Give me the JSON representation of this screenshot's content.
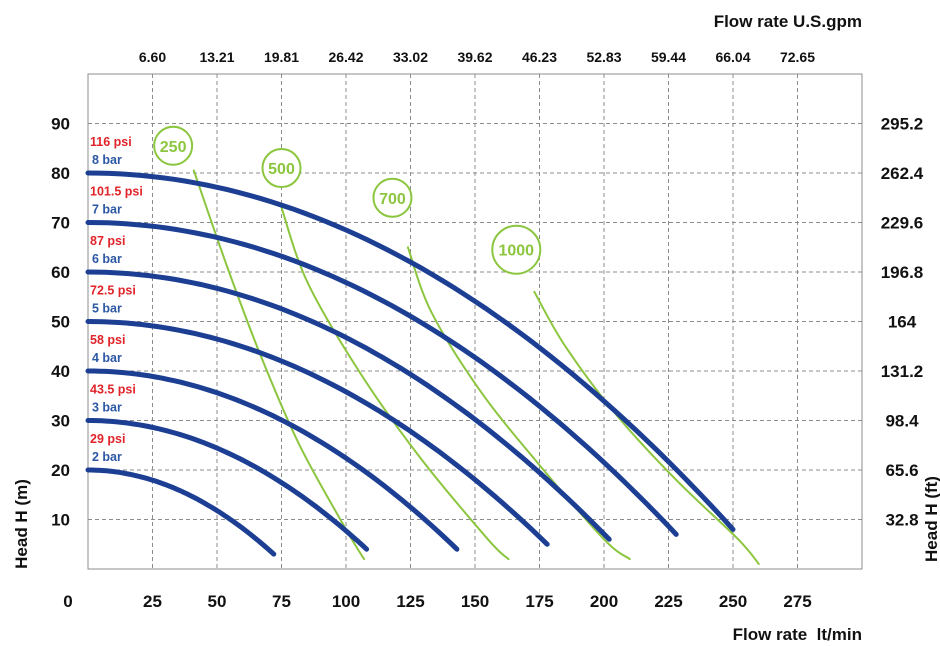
{
  "chart_data": {
    "type": "line",
    "title": "",
    "xlabel": "Flow rate  lt/min",
    "ylabel": "Head H (m)",
    "x2label": "Flow rate U.S.gpm",
    "y2label": "Head H (ft)",
    "xlim": [
      0,
      300
    ],
    "ylim": [
      0,
      100
    ],
    "grid": true,
    "x_ticks": [
      "0",
      "25",
      "50",
      "75",
      "100",
      "125",
      "150",
      "175",
      "200",
      "225",
      "250",
      "275"
    ],
    "y_ticks": [
      "10",
      "20",
      "30",
      "40",
      "50",
      "60",
      "70",
      "80",
      "90"
    ],
    "x2_ticks": [
      "6.60",
      "13.21",
      "19.81",
      "26.42",
      "33.02",
      "39.62",
      "46.23",
      "52.83",
      "59.44",
      "66.04",
      "72.65"
    ],
    "y2_ticks": [
      "32.8",
      "65.6",
      "98.4",
      "131.2",
      "164",
      "196.8",
      "229.6",
      "262.4",
      "295.2"
    ],
    "pressure_series": [
      {
        "name": "2 bar",
        "psi": "29 psi",
        "x": [
          0,
          72
        ],
        "y": [
          20,
          3
        ],
        "color": "#1c3f94"
      },
      {
        "name": "3 bar",
        "psi": "43.5 psi",
        "x": [
          0,
          108
        ],
        "y": [
          30,
          4
        ],
        "color": "#1c3f94"
      },
      {
        "name": "4 bar",
        "psi": "58 psi",
        "x": [
          0,
          143
        ],
        "y": [
          40,
          4
        ],
        "color": "#1c3f94"
      },
      {
        "name": "5 bar",
        "psi": "72.5 psi",
        "x": [
          0,
          178
        ],
        "y": [
          50,
          5
        ],
        "color": "#1c3f94"
      },
      {
        "name": "6 bar",
        "psi": "87 psi",
        "x": [
          0,
          202
        ],
        "y": [
          60,
          6
        ],
        "color": "#1c3f94"
      },
      {
        "name": "7 bar",
        "psi": "101.5 psi",
        "x": [
          0,
          228
        ],
        "y": [
          70,
          7
        ],
        "color": "#1c3f94"
      },
      {
        "name": "8 bar",
        "psi": "116 psi",
        "x": [
          0,
          250
        ],
        "y": [
          80,
          8
        ],
        "color": "#1c3f94"
      }
    ],
    "air_series": [
      {
        "name": "250",
        "x": [
          41,
          54,
          67,
          82,
          100,
          107
        ],
        "y": [
          80.5,
          61,
          43,
          25,
          8,
          2
        ],
        "color": "#8cc63f"
      },
      {
        "name": "500",
        "x": [
          75,
          85,
          105,
          128,
          155,
          163
        ],
        "y": [
          73,
          58,
          40,
          23,
          6,
          2
        ],
        "color": "#8cc63f"
      },
      {
        "name": "700",
        "x": [
          124,
          133,
          152,
          175,
          200,
          210
        ],
        "y": [
          65,
          52,
          36,
          21,
          6,
          2
        ],
        "color": "#8cc63f"
      },
      {
        "name": "1000",
        "x": [
          173,
          185,
          205,
          228,
          252,
          260
        ],
        "y": [
          56,
          45,
          31,
          18,
          6,
          1
        ],
        "color": "#8cc63f"
      }
    ],
    "air_labels": [
      {
        "name": "250",
        "x": 33,
        "y": 85.5
      },
      {
        "name": "500",
        "x": 75,
        "y": 81
      },
      {
        "name": "700",
        "x": 118,
        "y": 75
      },
      {
        "name": "1000",
        "x": 166,
        "y": 64.5
      }
    ],
    "colors": {
      "pressure": "#1c3f94",
      "air": "#8cc63f",
      "psi_label": "#e0242a",
      "bar_label": "#2c57a4",
      "grid": "#8c8c8c"
    }
  }
}
